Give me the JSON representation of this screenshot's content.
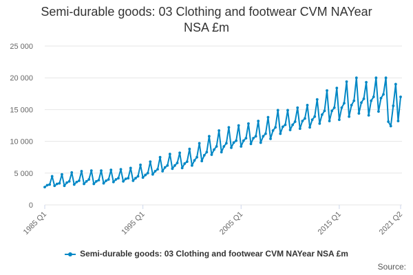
{
  "colors": {
    "series": "#0087c5",
    "grid": "#e6e6e6",
    "axis_text": "#666666",
    "title": "#333333"
  },
  "chart_data": {
    "type": "line",
    "title_line1": "Semi-durable goods: 03 Clothing and footwear CVM NAYear",
    "title_line2": "NSA £m",
    "xlabel": "",
    "ylabel": "",
    "ylim": [
      0,
      25000
    ],
    "y_ticks": [
      0,
      5000,
      10000,
      15000,
      20000,
      25000
    ],
    "y_tick_labels": [
      "0",
      "5 000",
      "10 000",
      "15 000",
      "20 000",
      "25 000"
    ],
    "x_ticks": [
      {
        "index": 0,
        "label": "1985 Q1"
      },
      {
        "index": 40,
        "label": "1995 Q1"
      },
      {
        "index": 80,
        "label": "2005 Q1"
      },
      {
        "index": 120,
        "label": "2015 Q1"
      },
      {
        "index": 145,
        "label": "2021 Q2"
      }
    ],
    "grid": true,
    "legend_position": "bottom-center",
    "source_label": "Source:",
    "series": [
      {
        "name": "Semi-durable goods: 03 Clothing and footwear CVM NAYear NSA £m",
        "start": "1985 Q1",
        "frequency": "quarterly",
        "values": [
          2800,
          3100,
          3200,
          4500,
          3000,
          3300,
          3400,
          4800,
          3000,
          3500,
          3700,
          5100,
          3200,
          3600,
          3800,
          5300,
          3300,
          3700,
          4000,
          5400,
          3300,
          3700,
          3900,
          5400,
          3400,
          3800,
          4000,
          5500,
          3600,
          4000,
          4200,
          5600,
          3700,
          4100,
          4200,
          5800,
          3800,
          4200,
          4500,
          6300,
          4300,
          4700,
          5000,
          6800,
          4800,
          5300,
          5600,
          7500,
          5300,
          5900,
          6200,
          8000,
          5700,
          6200,
          6600,
          8200,
          5800,
          6500,
          6800,
          8800,
          6200,
          7000,
          7500,
          9700,
          6900,
          7800,
          8300,
          10800,
          7900,
          8700,
          9200,
          11700,
          8300,
          9200,
          9700,
          12200,
          9000,
          9800,
          10100,
          12500,
          9200,
          10100,
          10500,
          12800,
          9600,
          10500,
          10800,
          13200,
          9800,
          10800,
          11200,
          13800,
          10400,
          11700,
          12200,
          14900,
          11200,
          12300,
          12600,
          14900,
          11800,
          12600,
          13100,
          15300,
          12000,
          13200,
          13600,
          15700,
          12200,
          13400,
          13900,
          16600,
          12800,
          14200,
          14800,
          18000,
          13200,
          14800,
          15300,
          18400,
          13400,
          15300,
          16000,
          19400,
          13900,
          15700,
          16400,
          20000,
          14400,
          16100,
          16700,
          19300,
          14100,
          16400,
          17000,
          20000,
          14700,
          16800,
          17400,
          20000,
          13100,
          12400,
          15600,
          19000,
          13200,
          17000
        ]
      }
    ]
  }
}
